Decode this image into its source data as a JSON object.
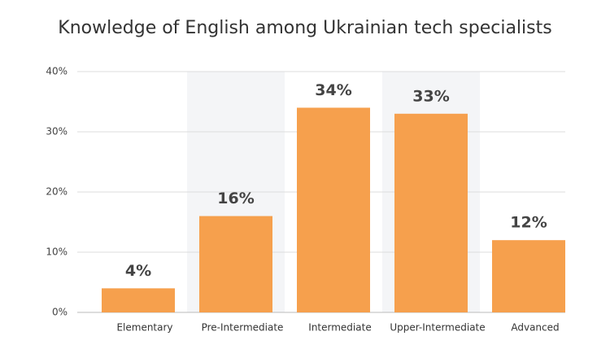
{
  "chart_data": {
    "type": "bar",
    "title": "Knowledge of English among Ukrainian tech specialists",
    "categories": [
      "Elementary",
      "Pre-Intermediate",
      "Intermediate",
      "Upper-Intermediate",
      "Advanced"
    ],
    "values": [
      4,
      16,
      34,
      33,
      12
    ],
    "value_labels": [
      "4%",
      "16%",
      "34%",
      "33%",
      "12%"
    ],
    "color": "#f6a04d",
    "ylim": [
      0,
      40
    ],
    "yticks": [
      {
        "value": 0,
        "label": "0%"
      },
      {
        "value": 10,
        "label": "10%"
      },
      {
        "value": 20,
        "label": "20%"
      },
      {
        "value": 30,
        "label": "30%"
      },
      {
        "value": 40,
        "label": "40%"
      }
    ],
    "grid": true
  }
}
